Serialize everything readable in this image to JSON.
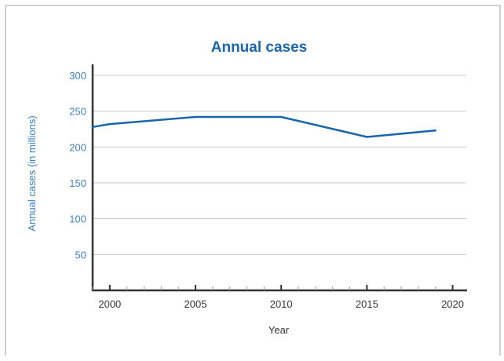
{
  "chart_data": {
    "type": "line",
    "title": "Annual cases",
    "xlabel": "Year",
    "ylabel": "Annual cases (in millions)",
    "x_ticks": [
      2000,
      2005,
      2010,
      2015,
      2020
    ],
    "y_ticks": [
      50,
      100,
      150,
      200,
      250,
      300
    ],
    "xlim": [
      1999,
      2020.8
    ],
    "ylim": [
      0,
      300
    ],
    "grid": true,
    "colors": {
      "line": "#1a66ad",
      "title": "#1a66ad",
      "ylabel": "#3e82c4",
      "ytick": "#3e82c4",
      "xtick": "#333333",
      "axis": "#333333",
      "grid": "#c9c9c9"
    },
    "series": [
      {
        "x": [
          1999,
          2000,
          2005,
          2010,
          2015,
          2019
        ],
        "y": [
          228,
          232,
          242,
          242,
          214,
          223
        ]
      }
    ]
  }
}
